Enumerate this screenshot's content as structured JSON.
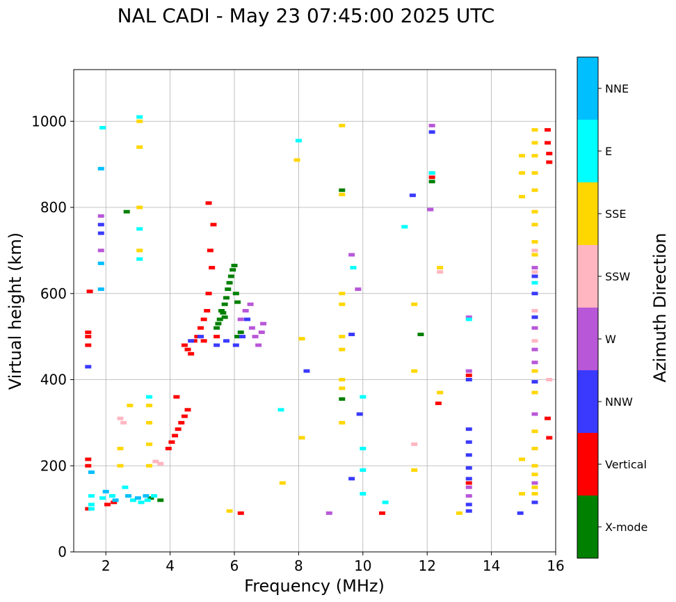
{
  "chart_data": {
    "type": "scatter",
    "title": "NAL CADI - May 23 07:45:00 2025 UTC",
    "xlabel": "Frequency (MHz)",
    "ylabel": "Virtual height (km)",
    "xlim": [
      1,
      16
    ],
    "ylim": [
      0,
      1120
    ],
    "xticks": [
      2,
      4,
      6,
      8,
      10,
      12,
      14,
      16
    ],
    "yticks": [
      0,
      200,
      400,
      600,
      800,
      1000
    ],
    "grid": true,
    "colorbar": {
      "title": "Azimuth Direction",
      "categories": [
        {
          "name": "X-mode",
          "color": "#008000"
        },
        {
          "name": "Vertical",
          "color": "#ff0000"
        },
        {
          "name": "NNW",
          "color": "#3a3aff"
        },
        {
          "name": "W",
          "color": "#b857d8"
        },
        {
          "name": "SSW",
          "color": "#ffb6c1"
        },
        {
          "name": "SSE",
          "color": "#ffd700"
        },
        {
          "name": "E",
          "color": "#00ffff"
        },
        {
          "name": "NNE",
          "color": "#00bfff"
        }
      ]
    },
    "series": [
      {
        "name": "X-mode",
        "points": [
          [
            5.55,
            540
          ],
          [
            5.6,
            560
          ],
          [
            5.7,
            575
          ],
          [
            5.75,
            590
          ],
          [
            5.8,
            610
          ],
          [
            5.85,
            625
          ],
          [
            5.9,
            640
          ],
          [
            5.95,
            655
          ],
          [
            6.0,
            665
          ],
          [
            6.05,
            600
          ],
          [
            6.1,
            580
          ],
          [
            5.65,
            555
          ],
          [
            5.5,
            530
          ],
          [
            5.45,
            520
          ],
          [
            5.7,
            545
          ],
          [
            6.2,
            510
          ],
          [
            3.4,
            125
          ],
          [
            3.7,
            120
          ],
          [
            12.15,
            880
          ],
          [
            12.15,
            860
          ],
          [
            9.35,
            840
          ],
          [
            9.35,
            355
          ],
          [
            11.8,
            505
          ],
          [
            2.65,
            790
          ],
          [
            6.1,
            500
          ]
        ]
      },
      {
        "name": "Vertical",
        "points": [
          [
            1.45,
            480
          ],
          [
            1.45,
            500
          ],
          [
            1.45,
            510
          ],
          [
            1.45,
            215
          ],
          [
            1.45,
            200
          ],
          [
            1.45,
            100
          ],
          [
            1.5,
            605
          ],
          [
            4.45,
            480
          ],
          [
            4.55,
            470
          ],
          [
            4.65,
            460
          ],
          [
            4.75,
            490
          ],
          [
            4.85,
            500
          ],
          [
            4.95,
            520
          ],
          [
            5.05,
            540
          ],
          [
            5.15,
            560
          ],
          [
            5.2,
            600
          ],
          [
            5.3,
            660
          ],
          [
            5.25,
            700
          ],
          [
            5.35,
            760
          ],
          [
            5.2,
            810
          ],
          [
            3.95,
            240
          ],
          [
            4.05,
            255
          ],
          [
            4.15,
            270
          ],
          [
            4.25,
            285
          ],
          [
            4.35,
            300
          ],
          [
            4.45,
            315
          ],
          [
            4.55,
            330
          ],
          [
            4.2,
            360
          ],
          [
            2.05,
            110
          ],
          [
            2.25,
            115
          ],
          [
            12.35,
            345
          ],
          [
            13.3,
            410
          ],
          [
            13.3,
            160
          ],
          [
            6.2,
            90
          ],
          [
            10.6,
            90
          ],
          [
            15.75,
            980
          ],
          [
            15.75,
            950
          ],
          [
            15.8,
            925
          ],
          [
            15.8,
            905
          ],
          [
            15.75,
            310
          ],
          [
            15.8,
            265
          ],
          [
            12.15,
            870
          ],
          [
            5.05,
            490
          ],
          [
            5.45,
            500
          ]
        ]
      },
      {
        "name": "NNW",
        "points": [
          [
            1.85,
            760
          ],
          [
            1.85,
            740
          ],
          [
            1.45,
            430
          ],
          [
            4.65,
            490
          ],
          [
            4.95,
            500
          ],
          [
            5.45,
            480
          ],
          [
            5.75,
            490
          ],
          [
            6.05,
            480
          ],
          [
            6.25,
            500
          ],
          [
            6.4,
            540
          ],
          [
            13.3,
            285
          ],
          [
            13.3,
            255
          ],
          [
            13.3,
            225
          ],
          [
            13.3,
            195
          ],
          [
            13.3,
            170
          ],
          [
            13.3,
            110
          ],
          [
            13.3,
            95
          ],
          [
            13.3,
            400
          ],
          [
            14.9,
            90
          ],
          [
            15.35,
            115
          ],
          [
            15.35,
            395
          ],
          [
            15.35,
            545
          ],
          [
            15.35,
            600
          ],
          [
            15.35,
            640
          ],
          [
            8.25,
            420
          ],
          [
            9.9,
            320
          ],
          [
            11.55,
            828
          ],
          [
            9.65,
            170
          ],
          [
            9.65,
            505
          ],
          [
            12.15,
            975
          ]
        ]
      },
      {
        "name": "W",
        "points": [
          [
            1.85,
            700
          ],
          [
            1.85,
            780
          ],
          [
            6.2,
            540
          ],
          [
            6.35,
            560
          ],
          [
            6.5,
            575
          ],
          [
            6.55,
            520
          ],
          [
            6.65,
            500
          ],
          [
            6.75,
            480
          ],
          [
            6.85,
            510
          ],
          [
            6.9,
            530
          ],
          [
            13.3,
            150
          ],
          [
            13.3,
            130
          ],
          [
            13.3,
            420
          ],
          [
            13.3,
            545
          ],
          [
            15.35,
            160
          ],
          [
            15.35,
            320
          ],
          [
            15.35,
            440
          ],
          [
            15.35,
            470
          ],
          [
            15.35,
            520
          ],
          [
            15.35,
            660
          ],
          [
            12.15,
            990
          ],
          [
            12.1,
            795
          ],
          [
            9.65,
            690
          ],
          [
            9.85,
            610
          ],
          [
            8.95,
            90
          ]
        ]
      },
      {
        "name": "SSW",
        "points": [
          [
            2.45,
            310
          ],
          [
            2.55,
            300
          ],
          [
            3.55,
            210
          ],
          [
            3.7,
            205
          ],
          [
            15.35,
            490
          ],
          [
            15.35,
            560
          ],
          [
            15.35,
            650
          ],
          [
            15.35,
            700
          ],
          [
            15.8,
            400
          ],
          [
            12.4,
            650
          ],
          [
            11.6,
            250
          ]
        ]
      },
      {
        "name": "SSE",
        "points": [
          [
            3.05,
            1000
          ],
          [
            3.05,
            940
          ],
          [
            3.05,
            800
          ],
          [
            3.05,
            700
          ],
          [
            2.75,
            340
          ],
          [
            3.35,
            340
          ],
          [
            3.35,
            300
          ],
          [
            3.35,
            250
          ],
          [
            3.35,
            200
          ],
          [
            2.45,
            240
          ],
          [
            2.45,
            200
          ],
          [
            9.35,
            990
          ],
          [
            9.35,
            830
          ],
          [
            9.35,
            600
          ],
          [
            9.35,
            575
          ],
          [
            9.35,
            500
          ],
          [
            9.35,
            470
          ],
          [
            9.35,
            400
          ],
          [
            9.35,
            380
          ],
          [
            9.35,
            300
          ],
          [
            15.35,
            980
          ],
          [
            15.35,
            950
          ],
          [
            15.35,
            920
          ],
          [
            15.35,
            880
          ],
          [
            15.35,
            840
          ],
          [
            15.35,
            790
          ],
          [
            15.35,
            760
          ],
          [
            15.35,
            720
          ],
          [
            15.35,
            690
          ],
          [
            15.35,
            420
          ],
          [
            15.35,
            370
          ],
          [
            15.35,
            280
          ],
          [
            15.35,
            240
          ],
          [
            15.35,
            200
          ],
          [
            15.35,
            180
          ],
          [
            15.35,
            150
          ],
          [
            15.35,
            135
          ],
          [
            14.95,
            920
          ],
          [
            14.95,
            880
          ],
          [
            14.95,
            825
          ],
          [
            14.95,
            215
          ],
          [
            14.95,
            135
          ],
          [
            12.4,
            370
          ],
          [
            12.4,
            660
          ],
          [
            11.6,
            575
          ],
          [
            11.6,
            420
          ],
          [
            11.6,
            190
          ],
          [
            7.95,
            910
          ],
          [
            8.1,
            495
          ],
          [
            8.1,
            265
          ],
          [
            7.5,
            160
          ],
          [
            13.0,
            90
          ],
          [
            5.85,
            95
          ]
        ]
      },
      {
        "name": "E",
        "points": [
          [
            1.9,
            985
          ],
          [
            3.05,
            1010
          ],
          [
            3.05,
            750
          ],
          [
            3.05,
            680
          ],
          [
            3.35,
            360
          ],
          [
            1.55,
            130
          ],
          [
            1.55,
            110
          ],
          [
            1.55,
            100
          ],
          [
            1.9,
            125
          ],
          [
            2.2,
            130
          ],
          [
            2.6,
            150
          ],
          [
            2.85,
            120
          ],
          [
            3.1,
            115
          ],
          [
            3.3,
            120
          ],
          [
            3.5,
            130
          ],
          [
            10.0,
            360
          ],
          [
            10.0,
            240
          ],
          [
            10.0,
            190
          ],
          [
            10.0,
            135
          ],
          [
            10.7,
            115
          ],
          [
            11.3,
            755
          ],
          [
            12.15,
            880
          ],
          [
            13.3,
            540
          ],
          [
            15.35,
            625
          ],
          [
            8.0,
            955
          ],
          [
            7.45,
            330
          ],
          [
            9.7,
            660
          ]
        ]
      },
      {
        "name": "NNE",
        "points": [
          [
            1.85,
            890
          ],
          [
            1.85,
            670
          ],
          [
            1.85,
            610
          ],
          [
            1.55,
            185
          ],
          [
            2.0,
            140
          ],
          [
            2.3,
            120
          ],
          [
            2.7,
            130
          ],
          [
            3.0,
            125
          ],
          [
            3.25,
            130
          ]
        ]
      }
    ]
  }
}
